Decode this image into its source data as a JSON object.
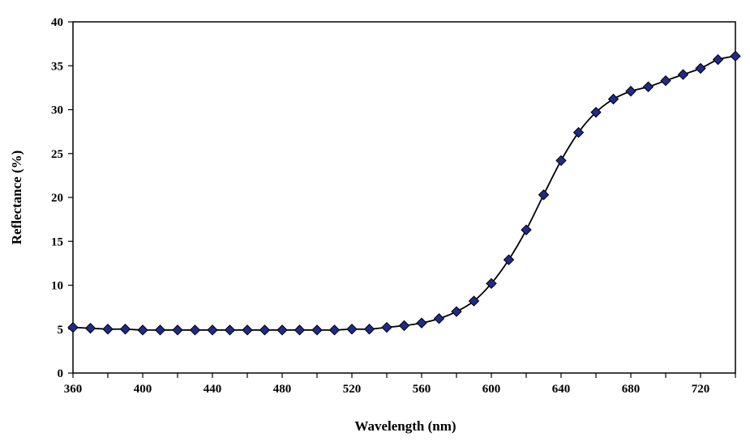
{
  "chart_data": {
    "type": "line",
    "title": "",
    "xlabel": "Wavelength (nm)",
    "ylabel": "Reflectance (%)",
    "xlim": [
      360,
      740
    ],
    "ylim": [
      0,
      40
    ],
    "x_ticks": [
      360,
      400,
      440,
      480,
      520,
      560,
      600,
      640,
      680,
      720
    ],
    "y_ticks": [
      0,
      5,
      10,
      15,
      20,
      25,
      30,
      35,
      40
    ],
    "grid": false,
    "legend": "none",
    "marker": "diamond",
    "colors": {
      "line": "#000000",
      "marker_fill": "#1f2a8c",
      "marker_edge": "#000000"
    },
    "x": [
      360,
      370,
      380,
      390,
      400,
      410,
      420,
      430,
      440,
      450,
      460,
      470,
      480,
      490,
      500,
      510,
      520,
      530,
      540,
      550,
      560,
      570,
      580,
      590,
      600,
      610,
      620,
      630,
      640,
      650,
      660,
      670,
      680,
      690,
      700,
      710,
      720,
      730,
      740
    ],
    "series": [
      {
        "values": [
          5.2,
          5.1,
          5.0,
          5.0,
          4.9,
          4.9,
          4.9,
          4.9,
          4.9,
          4.9,
          4.9,
          4.9,
          4.9,
          4.9,
          4.9,
          4.9,
          5.0,
          5.0,
          5.2,
          5.4,
          5.7,
          6.2,
          7.0,
          8.2,
          10.2,
          12.9,
          16.3,
          20.3,
          24.2,
          27.4,
          29.7,
          31.2,
          32.1,
          32.6,
          33.3,
          34.0,
          34.7,
          35.7,
          36.1
        ]
      }
    ]
  }
}
